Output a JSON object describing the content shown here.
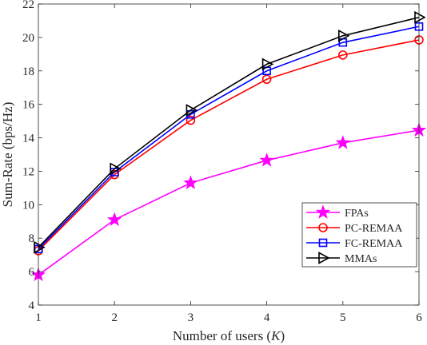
{
  "chart_data": {
    "type": "line",
    "x": [
      1,
      2,
      3,
      4,
      5,
      6
    ],
    "xlabel": "Number of users (K)",
    "xlabel_prefix": "Number of users (",
    "xlabel_var": "K",
    "xlabel_suffix": ")",
    "ylabel": "Sum-Rate (bps/Hz)",
    "xlim": [
      1,
      6
    ],
    "ylim": [
      4,
      22
    ],
    "xticks": [
      1,
      2,
      3,
      4,
      5,
      6
    ],
    "yticks": [
      4,
      6,
      8,
      10,
      12,
      14,
      16,
      18,
      20,
      22
    ],
    "grid": false,
    "legend_position": "bottom-right",
    "series": [
      {
        "name": "FPAs",
        "color": "#ff00ff",
        "marker": "star",
        "values": [
          5.8,
          9.1,
          11.3,
          12.65,
          13.7,
          14.45
        ]
      },
      {
        "name": "PC-REMAA",
        "color": "#ff0000",
        "marker": "circle",
        "values": [
          7.25,
          11.8,
          15.05,
          17.5,
          18.95,
          19.85
        ]
      },
      {
        "name": "FC-REMAA",
        "color": "#0000ff",
        "marker": "square",
        "values": [
          7.35,
          11.95,
          15.4,
          18.0,
          19.7,
          20.65
        ]
      },
      {
        "name": "MMAs",
        "color": "#000000",
        "marker": "triangle-right",
        "values": [
          7.45,
          12.15,
          15.65,
          18.4,
          20.1,
          21.2
        ]
      }
    ]
  }
}
